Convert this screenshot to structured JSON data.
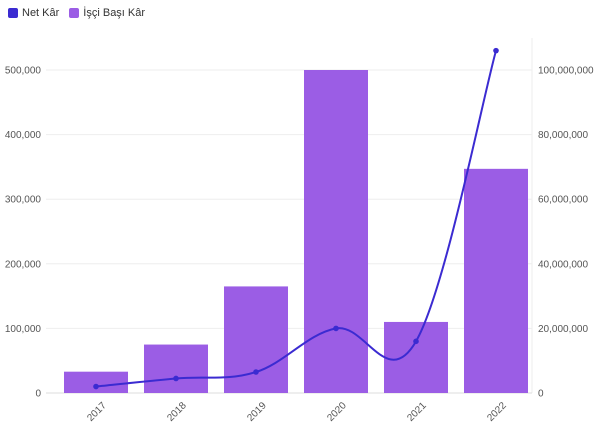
{
  "legend": {
    "line_label": "Net Kâr",
    "bar_label": "İşçi Başı Kâr"
  },
  "colors": {
    "line": "#3b2bd1",
    "bar": "#9b5de5",
    "grid": "#eeeeee",
    "axis": "#999999"
  },
  "chart_data": {
    "type": "bar",
    "categories": [
      "2017",
      "2018",
      "2019",
      "2020",
      "2021",
      "2022"
    ],
    "series": [
      {
        "name": "İşçi Başı Kâr",
        "type": "bar",
        "axis": "left",
        "values": [
          33000,
          75000,
          165000,
          500000,
          110000,
          347000
        ]
      },
      {
        "name": "Net Kâr",
        "type": "line",
        "axis": "right",
        "smooth": true,
        "values": [
          2000000,
          4500000,
          6500000,
          20000000,
          16000000,
          106000000
        ]
      }
    ],
    "y_left": {
      "range": [
        0,
        500000
      ],
      "ticks": [
        0,
        100000,
        200000,
        300000,
        400000,
        500000
      ],
      "tick_labels": [
        "0",
        "100,000",
        "200,000",
        "300,000",
        "400,000",
        "500,000"
      ]
    },
    "y_right": {
      "range": [
        0,
        100000000
      ],
      "ticks": [
        0,
        20000000,
        40000000,
        60000000,
        80000000,
        100000000
      ],
      "tick_labels": [
        "0",
        "20,000,000",
        "40,000,000",
        "60,000,000",
        "80,000,000",
        "100,000,000"
      ]
    },
    "grid": true,
    "legend_position": "top-left"
  }
}
